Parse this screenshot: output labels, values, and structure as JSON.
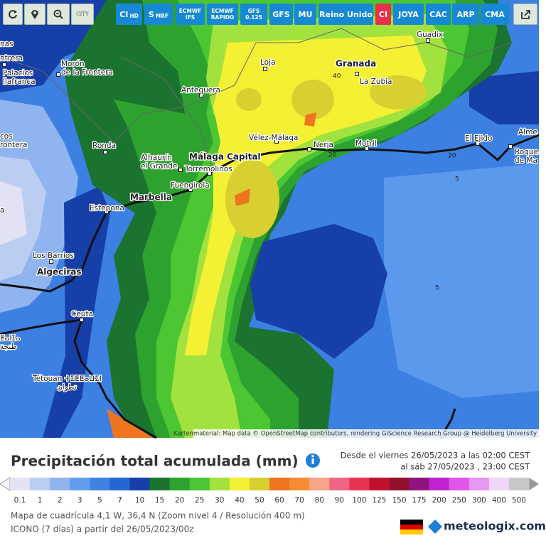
{
  "toolbar": {
    "city": "CITY",
    "models": [
      {
        "label": "CI",
        "sub": "HD"
      },
      {
        "label": "S",
        "sub": "MRF"
      },
      {
        "label": "ECMWF",
        "sub": "IFS"
      },
      {
        "label": "ECMWF",
        "sub": "RAPIDO"
      },
      {
        "label": "GFS",
        "sub": "0.125"
      },
      {
        "label": "GFS"
      },
      {
        "label": "MU"
      },
      {
        "label": "Reino Unido"
      },
      {
        "label": "CI"
      },
      {
        "label": "JOYA"
      },
      {
        "label": "CAC"
      },
      {
        "label": "ARP"
      },
      {
        "label": "CMA"
      }
    ]
  },
  "map": {
    "places": [
      {
        "lines": [
          "nas"
        ]
      },
      {
        "lines": [
          "ntrera"
        ]
      },
      {
        "lines": [
          "Palacios",
          "llafranca"
        ]
      },
      {
        "lines": [
          "Morón",
          "de la Frontera"
        ]
      },
      {
        "lines": [
          "Loja"
        ]
      },
      {
        "lines": [
          "Granada"
        ]
      },
      {
        "lines": [
          "La Zubia"
        ]
      },
      {
        "lines": [
          "Guadix"
        ]
      },
      {
        "lines": [
          "Antequera"
        ]
      },
      {
        "lines": [
          "cos",
          "rontera"
        ]
      },
      {
        "lines": [
          "Ronda"
        ]
      },
      {
        "lines": [
          "Vélez-Málaga"
        ]
      },
      {
        "lines": [
          "Nerja"
        ]
      },
      {
        "lines": [
          "Motril"
        ]
      },
      {
        "lines": [
          "El Ejido"
        ]
      },
      {
        "lines": [
          "Alme"
        ]
      },
      {
        "lines": [
          "Roque",
          "de Ma"
        ]
      },
      {
        "lines": [
          "Alhaurín",
          "el Grande"
        ]
      },
      {
        "lines": [
          "Málaga Capital"
        ]
      },
      {
        "lines": [
          "Torremolinos"
        ]
      },
      {
        "lines": [
          "Fuengirola"
        ]
      },
      {
        "lines": [
          "Marbella"
        ]
      },
      {
        "lines": [
          "Estepona"
        ]
      },
      {
        "lines": [
          "a"
        ]
      },
      {
        "lines": [
          "Los Barrios"
        ]
      },
      {
        "lines": [
          "Algeciras"
        ]
      },
      {
        "lines": [
          "Ceuta"
        ]
      },
      {
        "lines": [
          "ⵟⴰⵏⵊⴰ",
          "طنجة"
        ]
      },
      {
        "lines": [
          "Tétouan ⵜⵉⵟⵟⴰⵡⵉⵏ",
          "تطوان"
        ]
      }
    ],
    "contour_labels": [
      "40",
      "20",
      "20",
      "5",
      "5"
    ],
    "attribution": "Kartenmaterial: Map data © OpenStreetMap contributors, rendering GIScience Research Group @ Heidelberg University"
  },
  "footer": {
    "title": "Precipitación total acumulada (mm)",
    "period": [
      "Desde el viernes 26/05/2023 a  las 02:00  CEST",
      "al sáb 27/05/2023 ,  23:00  CEST"
    ],
    "legend": {
      "values": [
        "0.1",
        "1",
        "2",
        "3",
        "5",
        "7",
        "10",
        "15",
        "20",
        "25",
        "30",
        "40",
        "50",
        "60",
        "70",
        "80",
        "90",
        "100",
        "125",
        "150",
        "175",
        "200",
        "250",
        "300",
        "400",
        "500"
      ],
      "colors": [
        "#e2e2f4",
        "#bccdf2",
        "#8fb4f0",
        "#629cec",
        "#3f82e2",
        "#2368d2",
        "#163fa8",
        "#1a7430",
        "#2ea22e",
        "#4cc632",
        "#a2e23e",
        "#f4f034",
        "#d8d030",
        "#ee7420",
        "#f68c34",
        "#f6a486",
        "#f06484",
        "#e83452",
        "#c0122e",
        "#90102e",
        "#8e1482",
        "#c222d2",
        "#e056ea",
        "#e896f0",
        "#f2d6fa",
        "#c8c8c8"
      ]
    },
    "grid_info": "Mapa de cuadrícula 4,1 W, 36,4 N (Zoom nivel 4 / Resolución 400 m)",
    "run_info": "ICONO (7 días) a partir del 26/05/2023/00z",
    "brand": "meteologix.com"
  }
}
